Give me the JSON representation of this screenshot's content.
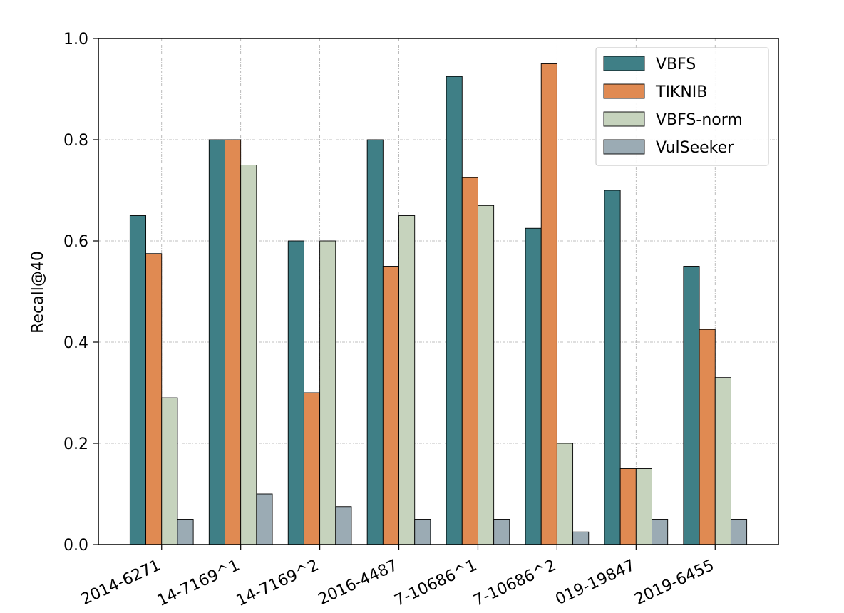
{
  "chart_data": {
    "type": "bar",
    "title": "",
    "xlabel": "",
    "ylabel": "Recall@40",
    "ylim": [
      0,
      1.0
    ],
    "yticks": [
      "0.0",
      "0.2",
      "0.4",
      "0.6",
      "0.8",
      "1.0"
    ],
    "grid": true,
    "legend_position": "top-right",
    "categories": [
      "2014-6271",
      "14-7169^1",
      "14-7169^2",
      "2016-4487",
      "7-10686^1",
      "7-10686^2",
      "019-19847",
      "2019-6455"
    ],
    "series": [
      {
        "name": "VBFS",
        "color": "#3f7f86",
        "values": [
          0.65,
          0.8,
          0.6,
          0.8,
          0.925,
          0.625,
          0.7,
          0.55
        ]
      },
      {
        "name": "TIKNIB",
        "color": "#e08a52",
        "values": [
          0.575,
          0.8,
          0.3,
          0.55,
          0.725,
          0.95,
          0.15,
          0.425
        ]
      },
      {
        "name": "VBFS-norm",
        "color": "#c6d3bd",
        "values": [
          0.29,
          0.75,
          0.6,
          0.65,
          0.67,
          0.2,
          0.15,
          0.33
        ]
      },
      {
        "name": "VulSeeker",
        "color": "#9babb4",
        "values": [
          0.05,
          0.1,
          0.075,
          0.05,
          0.05,
          0.025,
          0.05,
          0.05
        ]
      }
    ]
  }
}
